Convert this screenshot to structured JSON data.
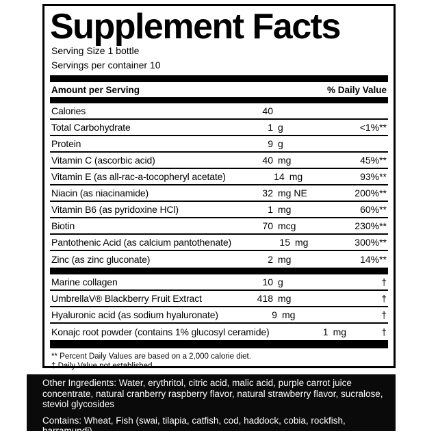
{
  "label": {
    "title": "Supplement Facts",
    "serving_size": "Serving Size 1 bottle",
    "servings_per_container": "Servings per container 10",
    "columns": {
      "amount_header": "Amount per Serving",
      "daily_value_header": "% Daily Value"
    },
    "nutrients": [
      {
        "name": "Calories",
        "amount": "40",
        "unit": "",
        "dv": ""
      },
      {
        "name": "Total Carbohydrate",
        "amount": "1",
        "unit": "g",
        "dv": "<1%**"
      },
      {
        "name": "Protein",
        "amount": "9",
        "unit": "g",
        "dv": ""
      },
      {
        "name": "Vitamin C (ascorbic acid)",
        "amount": "40",
        "unit": "mg",
        "dv": "45%**"
      },
      {
        "name": "Vitamin E (as all-rac-a-tocopheryl acetate)",
        "amount": "14",
        "unit": "mg",
        "dv": "93%**"
      },
      {
        "name": "Niacin (as niacinamide)",
        "amount": "32",
        "unit": "mg NE",
        "dv": "200%**"
      },
      {
        "name": "Vitamin B6 (as pyridoxine HCl)",
        "amount": "1",
        "unit": "mg",
        "dv": "60%**"
      },
      {
        "name": "Biotin",
        "amount": "70",
        "unit": "mcg",
        "dv": "230%**"
      },
      {
        "name": "Pantothenic Acid (as calcium pantothenate)",
        "amount": "15",
        "unit": "mg",
        "dv": "300%**"
      },
      {
        "name": "Zinc (as zinc gluconate)",
        "amount": "2",
        "unit": "mg",
        "dv": "14%**"
      }
    ],
    "blend": [
      {
        "name": "Marine collagen",
        "amount": "10",
        "unit": "g",
        "dv": "†"
      },
      {
        "name": "UmbrellaV® Blackberry Fruit Extract",
        "amount": "418",
        "unit": "mg",
        "dv": "†"
      },
      {
        "name": "Hyaluronic acid (as sodium hyaluronate)",
        "amount": "9",
        "unit": "mg",
        "dv": "†"
      },
      {
        "name": "Konajc root powder (contains 1% glucosyl ceramide)",
        "amount": "1",
        "unit": "mg",
        "dv": "†"
      }
    ],
    "footnotes": [
      "** Percent Daily Values are based on a 2,000 calorie diet.",
      "† Daily Value not established."
    ]
  },
  "other_panel": {
    "other_ingredients": "Other Ingredients: Water, erythritol, citric acid, malic acid, purple carrot juice\nconcentrate, natural cranberry raspberry flavor, natural strawberry flavor, sucralose,\nsteviol glycosides",
    "contains": "Contains: Wheat, Fish (swai, tilapia, catfish, cod, haddock, cobia, rockfish,\nbarramundi)"
  },
  "colors": {
    "ink": "#000000",
    "paper": "#ffffff",
    "panel_bg": "#0a0a0a",
    "panel_text": "#ffffff"
  }
}
